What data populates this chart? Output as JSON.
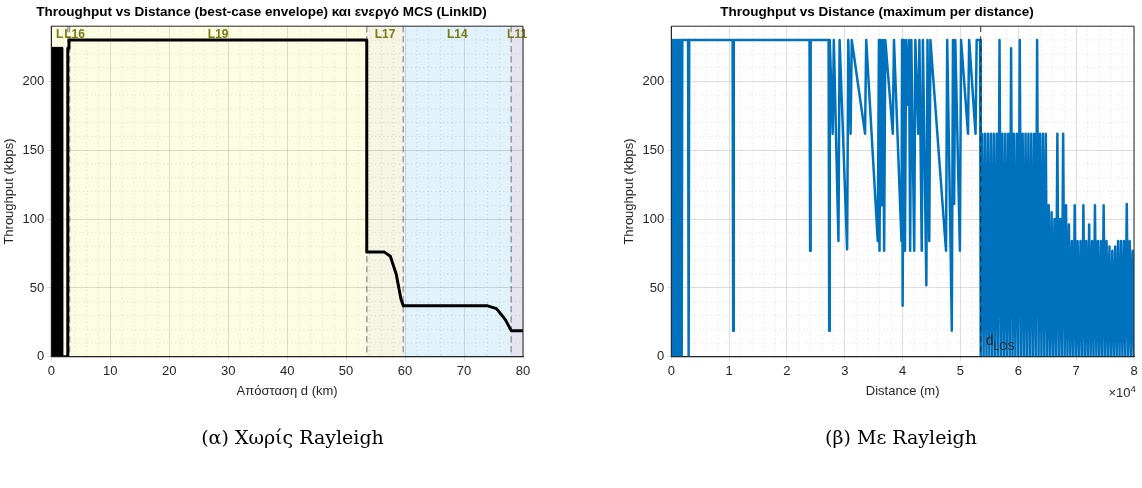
{
  "chart_data": [
    {
      "type": "line",
      "title": "Throughput vs Distance (best-case envelope) και ενεργό MCS (LinkID)",
      "xlabel": "Απόσταση d (km)",
      "ylabel": "Throughput (kbps)",
      "xlim": [
        0,
        80
      ],
      "xticks": [
        0,
        10,
        20,
        30,
        40,
        50,
        60,
        70,
        80
      ],
      "ylim": [
        0,
        240
      ],
      "yticks": [
        0,
        50,
        100,
        150,
        200
      ],
      "grid": true,
      "legend": false,
      "line_style": "solid",
      "marker": "none",
      "bands": [
        {
          "axis": "x",
          "from": 0,
          "to": 2.8,
          "label": "L",
          "color": "#fdfde3"
        },
        {
          "axis": "x",
          "from": 2.8,
          "to": 3.1,
          "label": "L16",
          "color": "#fdfde3"
        },
        {
          "axis": "x",
          "from": 3.1,
          "to": 53.5,
          "label": "L19",
          "color": "#fdfde3"
        },
        {
          "axis": "x",
          "from": 53.5,
          "to": 59.7,
          "label": "L17",
          "color": "#f6f4e3"
        },
        {
          "axis": "x",
          "from": 59.7,
          "to": 78,
          "label": "L14",
          "color": "#e2f2fb"
        },
        {
          "axis": "x",
          "from": 78,
          "to": 80,
          "label": "L11",
          "color": "#e8e3f2"
        }
      ],
      "series": [
        {
          "color": "#000000",
          "x": [
            0,
            0.15,
            0.3,
            0.45,
            0.6,
            0.75,
            0.9,
            1.05,
            1.2,
            1.35,
            1.5,
            1.65,
            1.8,
            2.8,
            2.8,
            3.0,
            3.0,
            53.5,
            53.5,
            56.5,
            57.5,
            58.5,
            59.3,
            59.7,
            74,
            75.5,
            77,
            78,
            80
          ],
          "values": [
            0,
            224,
            0,
            224,
            0,
            224,
            0,
            224,
            0,
            224,
            0,
            224,
            0,
            0,
            224,
            224,
            230,
            230,
            76,
            76,
            73,
            60,
            42,
            37,
            37,
            35,
            27,
            19,
            19
          ]
        }
      ],
      "annotations": [
        "(α) Χωρίς Rayleigh"
      ]
    },
    {
      "type": "line",
      "title": "Throughput vs Distance (maximum per distance)",
      "xlabel": "Distance (m)",
      "ylabel": "Throughput (kbps)",
      "xlim": [
        0,
        8
      ],
      "xticks": [
        0,
        1,
        2,
        3,
        4,
        5,
        6,
        7,
        8
      ],
      "ylim": [
        0,
        240
      ],
      "yticks": [
        0,
        50,
        100,
        150,
        200
      ],
      "grid": true,
      "legend": false,
      "line_style": "solid",
      "marker": "none",
      "ref_lines": [
        {
          "axis": "x",
          "value": 5.35,
          "label": "d$_{LOS}$",
          "color": "#262626",
          "line_style": "dashed"
        }
      ],
      "series": [
        {
          "color": "#0072bd",
          "x": [
            0,
            0.015,
            0.03,
            0.045,
            0.06,
            0.075,
            0.09,
            0.105,
            0.12,
            0.135,
            0.15,
            0.165,
            0.18,
            0.19,
            0.29,
            0.3,
            0.31,
            1.06,
            1.07,
            1.08,
            2.39,
            2.4,
            2.41,
            2.72,
            2.73,
            2.74,
            2.79,
            2.81,
            2.89,
            2.91,
            3.04,
            3.06,
            3.1,
            3.12,
            3.35,
            3.37,
            3.57,
            3.59,
            3.6,
            3.62,
            3.64,
            3.66,
            3.68,
            3.7,
            3.83,
            3.85,
            3.98,
            3.99,
            4.0,
            4.02,
            4.04,
            4.06,
            4.09,
            4.11,
            4.13,
            4.15,
            4.2,
            4.22,
            4.27,
            4.29,
            4.33,
            4.35,
            4.41,
            4.43,
            4.46,
            4.48,
            4.75,
            4.77,
            4.83,
            4.85,
            4.87,
            4.89,
            4.91,
            4.99,
            5.01,
            5.13,
            5.15,
            5.26,
            5.28,
            5.34,
            5.35,
            5.375,
            5.4,
            5.425,
            5.45,
            5.475,
            5.5,
            5.525,
            5.55,
            5.575,
            5.6,
            5.625,
            5.65,
            5.675,
            5.7,
            5.725,
            5.75,
            5.775,
            5.8,
            5.825,
            5.85,
            5.875,
            5.9,
            5.925,
            5.95,
            5.975,
            6.0,
            6.025,
            6.05,
            6.075,
            6.1,
            6.125,
            6.15,
            6.175,
            6.2,
            6.225,
            6.25,
            6.275,
            6.3,
            6.325,
            6.35,
            6.375,
            6.4,
            6.425,
            6.45,
            6.475,
            6.5,
            6.525,
            6.55,
            6.575,
            6.6,
            6.625,
            6.65,
            6.675,
            6.7,
            6.725,
            6.75,
            6.775,
            6.8,
            6.825,
            6.85,
            6.875,
            6.9,
            6.925,
            6.95,
            6.975,
            7.0,
            7.025,
            7.05,
            7.075,
            7.1,
            7.125,
            7.15,
            7.175,
            7.2,
            7.225,
            7.25,
            7.275,
            7.3,
            7.325,
            7.35,
            7.375,
            7.4,
            7.425,
            7.45,
            7.475,
            7.5,
            7.525,
            7.55,
            7.575,
            7.6,
            7.625,
            7.65,
            7.675,
            7.7,
            7.725,
            7.75,
            7.775,
            7.8,
            7.825,
            7.85,
            7.875,
            7.9,
            7.925,
            7.95,
            7.975,
            8.0
          ],
          "values": [
            0,
            230,
            0,
            230,
            0,
            230,
            0,
            230,
            0,
            230,
            0,
            230,
            0,
            230,
            230,
            0,
            230,
            230,
            19,
            230,
            230,
            77,
            230,
            230,
            19,
            230,
            162,
            230,
            84,
            230,
            78,
            230,
            162,
            230,
            162,
            230,
            84,
            230,
            77,
            230,
            110,
            230,
            77,
            230,
            162,
            230,
            84,
            230,
            37,
            230,
            77,
            230,
            183,
            230,
            77,
            230,
            77,
            230,
            162,
            230,
            77,
            230,
            52,
            230,
            84,
            230,
            77,
            230,
            77,
            19,
            230,
            111,
            230,
            77,
            230,
            162,
            230,
            162,
            230,
            230,
            0,
            162,
            0,
            162,
            0,
            162,
            0,
            162,
            0,
            162,
            0,
            162,
            0,
            230,
            0,
            162,
            0,
            162,
            0,
            162,
            0,
            224,
            0,
            162,
            0,
            162,
            0,
            230,
            0,
            162,
            0,
            162,
            0,
            162,
            0,
            162,
            0,
            162,
            0,
            230,
            0,
            162,
            0,
            162,
            0,
            162,
            0,
            110,
            0,
            105,
            0,
            100,
            0,
            162,
            0,
            100,
            0,
            162,
            0,
            110,
            0,
            96,
            0,
            84,
            0,
            110,
            0,
            84,
            0,
            84,
            0,
            110,
            0,
            84,
            0,
            96,
            0,
            84,
            0,
            110,
            0,
            84,
            0,
            84,
            0,
            110,
            0,
            84,
            0,
            80,
            0,
            77,
            0,
            80,
            0,
            84,
            0,
            84,
            0,
            84,
            0,
            111,
            0,
            84,
            0,
            77,
            0
          ]
        }
      ],
      "annotations": [
        "×10$^{4}$",
        "(β) Με Rayleigh"
      ]
    }
  ]
}
